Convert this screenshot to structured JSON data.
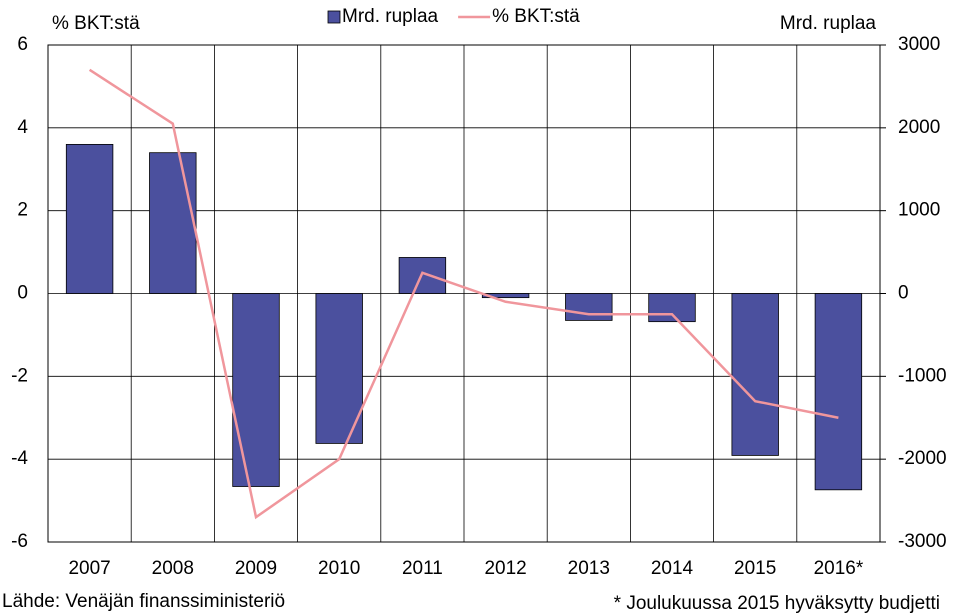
{
  "chart_data": {
    "type": "bar",
    "y_label": "% BKT:stä",
    "y2_label": "Mrd. ruplaa",
    "categories": [
      "2007",
      "2008",
      "2009",
      "2010",
      "2011",
      "2012",
      "2013",
      "2014",
      "2015",
      "2016*"
    ],
    "series": [
      {
        "name": "Mrd. ruplaa",
        "type": "bar",
        "axis": "y2",
        "color": "#4b509e",
        "values": [
          1800,
          1700,
          -2330,
          -1810,
          435,
          -50,
          -325,
          -340,
          -1955,
          -2370
        ]
      },
      {
        "name": "% BKT:stä",
        "type": "line",
        "axis": "y",
        "color": "#f0969c",
        "values": [
          5.4,
          4.1,
          -5.4,
          -4.0,
          0.5,
          -0.2,
          -0.5,
          -0.5,
          -2.6,
          -3.0
        ]
      }
    ],
    "ylim": [
      -6,
      6
    ],
    "yticks": [
      -6,
      -4,
      -2,
      0,
      2,
      4,
      6
    ],
    "y2lim": [
      -3000,
      3000
    ],
    "y2ticks": [
      -3000,
      -2000,
      -1000,
      0,
      1000,
      2000,
      3000
    ],
    "grid": true,
    "legend": "top",
    "source": "Lähde: Venäjän finanssiministeriö",
    "note": "* Joulukuussa 2015 hyväksytty budjetti"
  }
}
